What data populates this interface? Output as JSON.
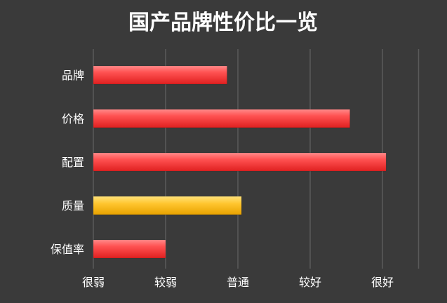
{
  "chart_data": {
    "type": "bar",
    "orientation": "horizontal",
    "title": "国产品牌性价比一览",
    "categories": [
      "品牌",
      "价格",
      "配置",
      "质量",
      "保值率"
    ],
    "values": [
      1.85,
      3.55,
      4.05,
      2.05,
      1.0
    ],
    "bar_colors": [
      "#ff4a4a",
      "#ff4a4a",
      "#ff4a4a",
      "#ffc52e",
      "#ff4a4a"
    ],
    "xticks": [
      "很弱",
      "较弱",
      "普通",
      "较好",
      "很好"
    ],
    "xtick_values": [
      0,
      1,
      2,
      3,
      4
    ],
    "xlim": [
      0,
      4.6
    ],
    "grid": true
  },
  "colors": {
    "background": "#3a3a3a",
    "grid": "#5a5a5a",
    "text": "#ffffff",
    "bar_red": "#ff4a4a",
    "bar_yellow": "#ffc52e"
  }
}
